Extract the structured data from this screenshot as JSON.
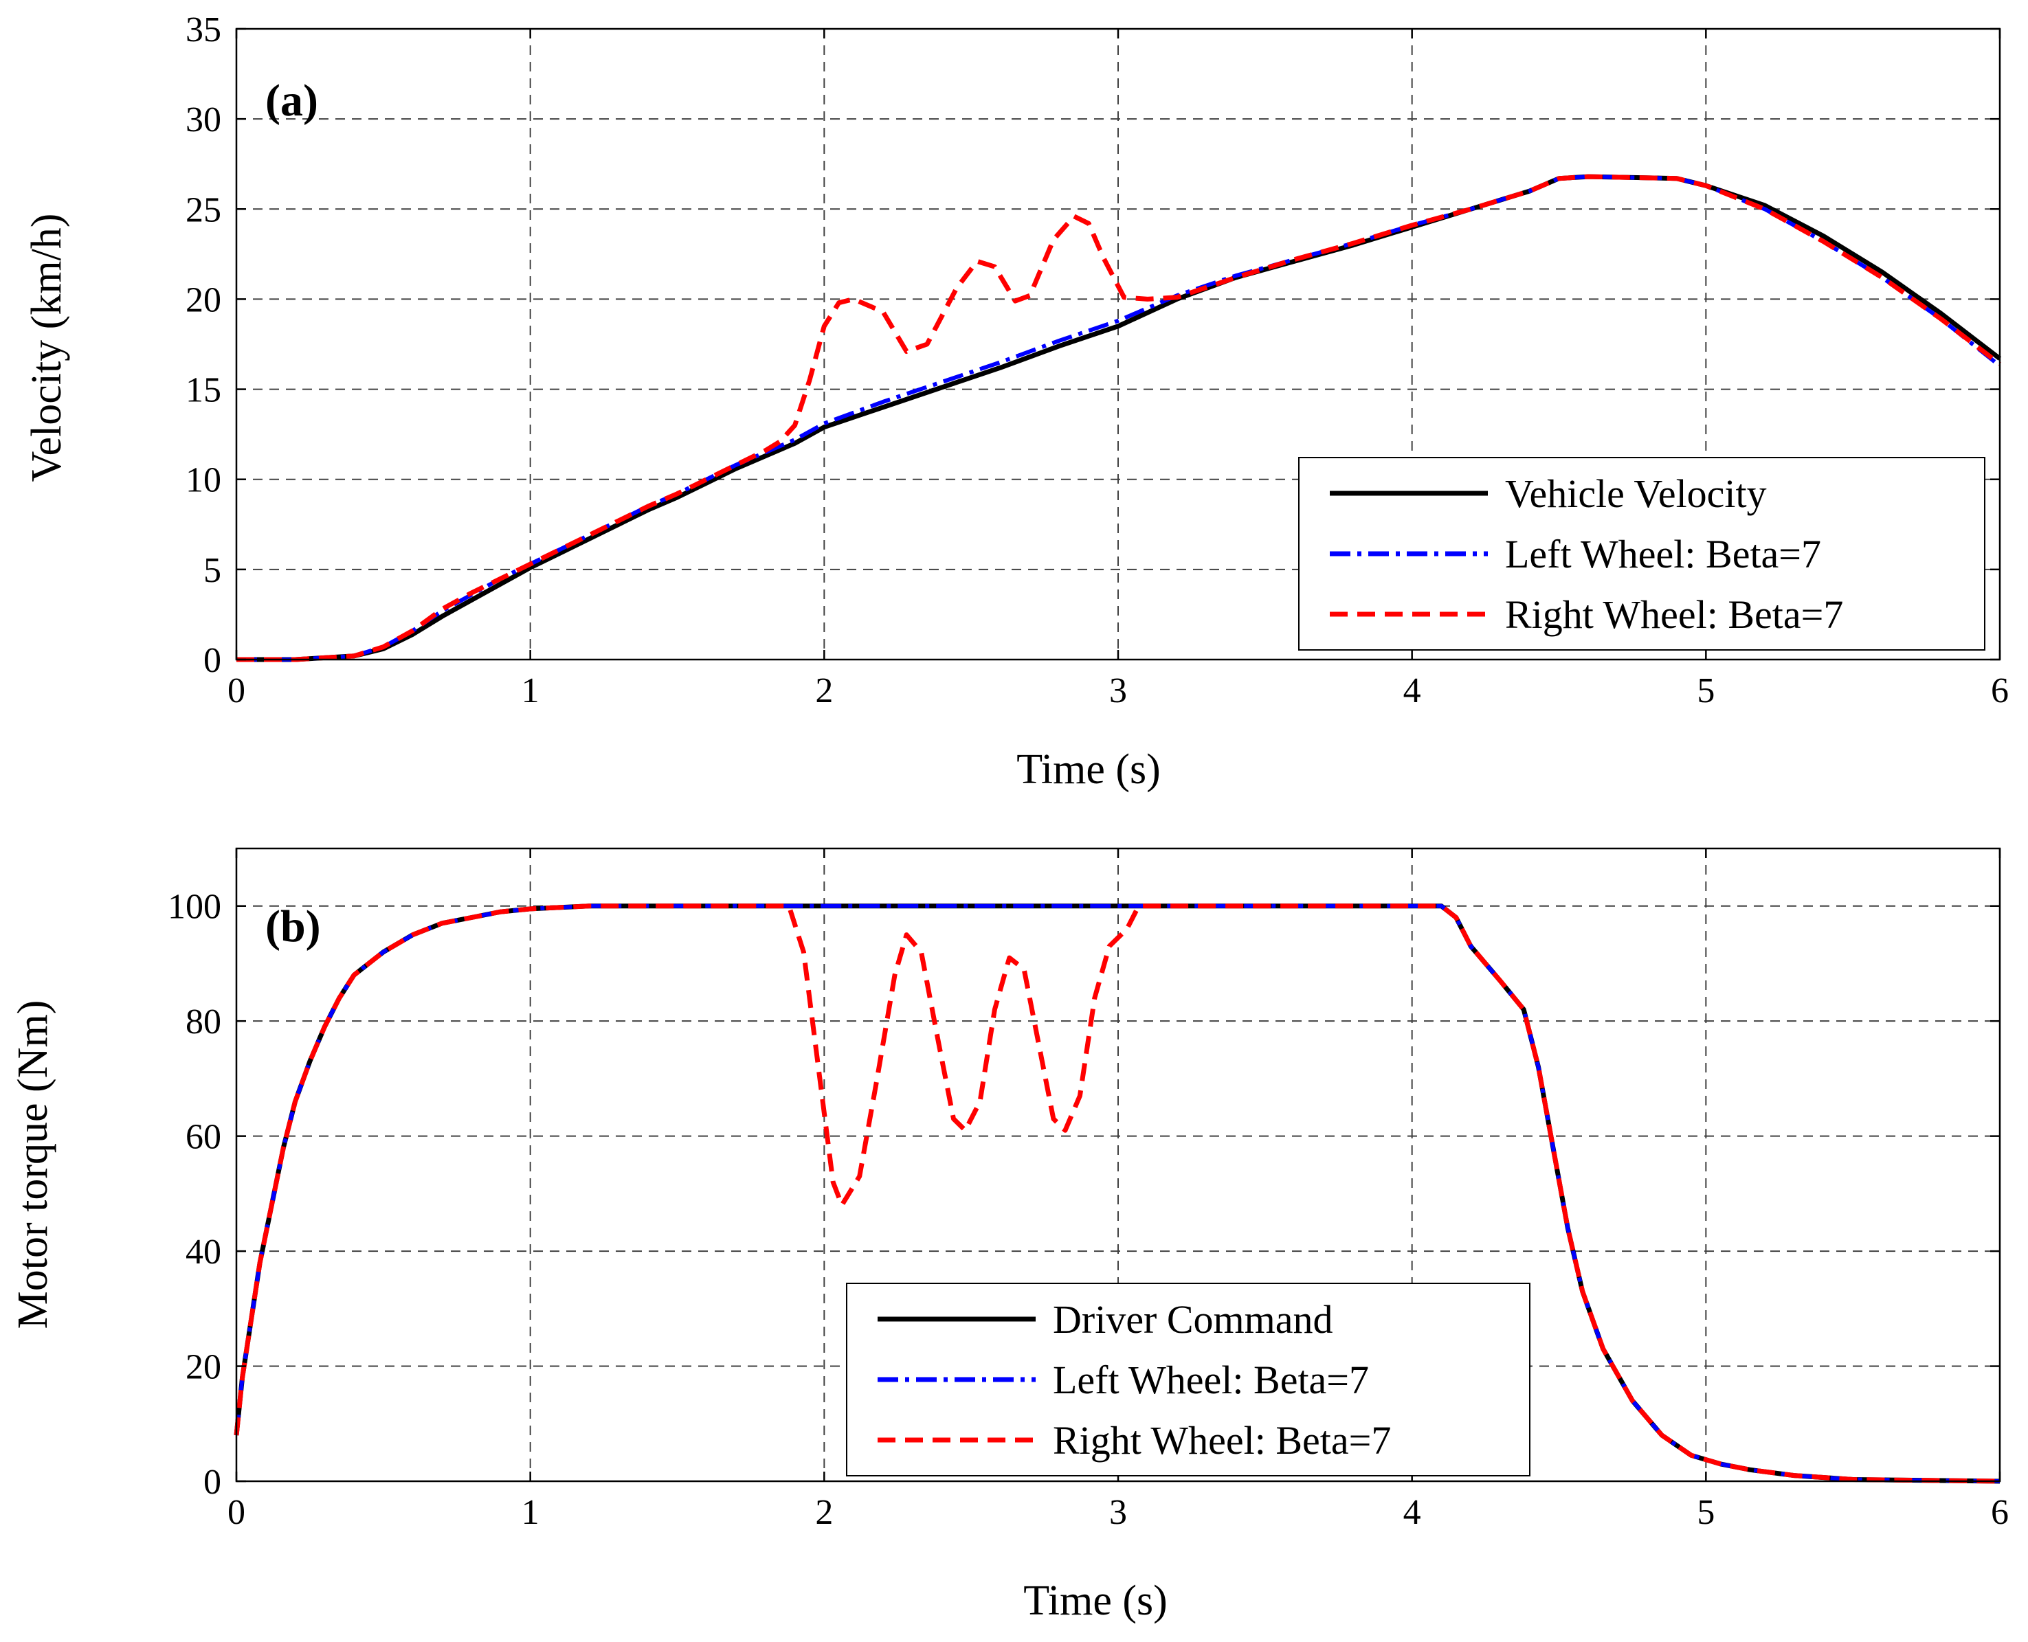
{
  "chart_data": [
    {
      "type": "line",
      "panel_label": "(a)",
      "xlabel": "Time (s)",
      "ylabel": "Velocity (km/h)",
      "xlim": [
        0,
        6
      ],
      "ylim": [
        0,
        35
      ],
      "xticks": [
        "0",
        "1",
        "2",
        "3",
        "4",
        "5",
        "6"
      ],
      "yticks": [
        "0",
        "5",
        "10",
        "15",
        "20",
        "25",
        "30",
        "35"
      ],
      "grid": true,
      "legend_position": "bottom-right",
      "series": [
        {
          "name": "Vehicle Velocity",
          "color": "#000000",
          "style": "solid",
          "points": [
            [
              0,
              0
            ],
            [
              0.2,
              0
            ],
            [
              0.3,
              0.1
            ],
            [
              0.4,
              0.2
            ],
            [
              0.5,
              0.6
            ],
            [
              0.6,
              1.4
            ],
            [
              0.7,
              2.4
            ],
            [
              0.8,
              3.3
            ],
            [
              0.9,
              4.2
            ],
            [
              1.0,
              5.1
            ],
            [
              1.1,
              5.9
            ],
            [
              1.2,
              6.7
            ],
            [
              1.3,
              7.5
            ],
            [
              1.4,
              8.3
            ],
            [
              1.5,
              9.0
            ],
            [
              1.6,
              9.8
            ],
            [
              1.7,
              10.6
            ],
            [
              1.8,
              11.3
            ],
            [
              1.9,
              12.0
            ],
            [
              2.0,
              12.9
            ],
            [
              2.2,
              14.0
            ],
            [
              2.4,
              15.1
            ],
            [
              2.6,
              16.2
            ],
            [
              2.8,
              17.4
            ],
            [
              3.0,
              18.5
            ],
            [
              3.2,
              20.0
            ],
            [
              3.4,
              21.2
            ],
            [
              3.6,
              22.1
            ],
            [
              3.8,
              23.0
            ],
            [
              4.0,
              24.0
            ],
            [
              4.2,
              25.0
            ],
            [
              4.4,
              26.0
            ],
            [
              4.5,
              26.7
            ],
            [
              4.6,
              26.8
            ],
            [
              4.9,
              26.7
            ],
            [
              5.0,
              26.3
            ],
            [
              5.2,
              25.2
            ],
            [
              5.4,
              23.5
            ],
            [
              5.6,
              21.5
            ],
            [
              5.8,
              19.2
            ],
            [
              6.0,
              16.7
            ]
          ]
        },
        {
          "name": "Left Wheel: Beta=7",
          "color": "#0000ff",
          "style": "dashdot",
          "points": [
            [
              0,
              0
            ],
            [
              0.2,
              0
            ],
            [
              0.3,
              0.1
            ],
            [
              0.4,
              0.2
            ],
            [
              0.5,
              0.7
            ],
            [
              0.6,
              1.6
            ],
            [
              0.7,
              2.7
            ],
            [
              0.8,
              3.6
            ],
            [
              0.9,
              4.5
            ],
            [
              1.0,
              5.3
            ],
            [
              1.1,
              6.1
            ],
            [
              1.2,
              6.9
            ],
            [
              1.3,
              7.7
            ],
            [
              1.4,
              8.5
            ],
            [
              1.5,
              9.2
            ],
            [
              1.6,
              10.0
            ],
            [
              1.7,
              10.8
            ],
            [
              1.8,
              11.5
            ],
            [
              1.9,
              12.2
            ],
            [
              2.0,
              13.1
            ],
            [
              2.2,
              14.3
            ],
            [
              2.4,
              15.4
            ],
            [
              2.6,
              16.5
            ],
            [
              2.8,
              17.7
            ],
            [
              3.0,
              18.8
            ],
            [
              3.2,
              20.2
            ],
            [
              3.4,
              21.3
            ],
            [
              3.6,
              22.2
            ],
            [
              3.8,
              23.1
            ],
            [
              4.0,
              24.1
            ],
            [
              4.2,
              25.0
            ],
            [
              4.4,
              26.0
            ],
            [
              4.5,
              26.7
            ],
            [
              4.6,
              26.8
            ],
            [
              4.9,
              26.7
            ],
            [
              5.0,
              26.3
            ],
            [
              5.2,
              25.0
            ],
            [
              5.4,
              23.2
            ],
            [
              5.6,
              21.2
            ],
            [
              5.8,
              18.9
            ],
            [
              6.0,
              16.3
            ]
          ]
        },
        {
          "name": "Right Wheel: Beta=7",
          "color": "#ff0000",
          "style": "dashed",
          "points": [
            [
              0,
              0
            ],
            [
              0.2,
              0
            ],
            [
              0.3,
              0.1
            ],
            [
              0.4,
              0.2
            ],
            [
              0.5,
              0.7
            ],
            [
              0.6,
              1.6
            ],
            [
              0.7,
              2.8
            ],
            [
              0.8,
              3.7
            ],
            [
              0.9,
              4.5
            ],
            [
              1.0,
              5.3
            ],
            [
              1.1,
              6.1
            ],
            [
              1.2,
              6.9
            ],
            [
              1.3,
              7.7
            ],
            [
              1.4,
              8.5
            ],
            [
              1.5,
              9.2
            ],
            [
              1.6,
              10.0
            ],
            [
              1.7,
              10.8
            ],
            [
              1.8,
              11.6
            ],
            [
              1.85,
              12.1
            ],
            [
              1.9,
              13.0
            ],
            [
              1.95,
              15.5
            ],
            [
              2.0,
              18.5
            ],
            [
              2.05,
              19.8
            ],
            [
              2.1,
              20.0
            ],
            [
              2.2,
              19.3
            ],
            [
              2.28,
              17.1
            ],
            [
              2.35,
              17.5
            ],
            [
              2.45,
              20.6
            ],
            [
              2.52,
              22.1
            ],
            [
              2.58,
              21.8
            ],
            [
              2.65,
              19.9
            ],
            [
              2.7,
              20.2
            ],
            [
              2.78,
              23.3
            ],
            [
              2.85,
              24.6
            ],
            [
              2.9,
              24.2
            ],
            [
              2.95,
              22.3
            ],
            [
              3.02,
              20.1
            ],
            [
              3.1,
              20.0
            ],
            [
              3.2,
              20.1
            ],
            [
              3.4,
              21.2
            ],
            [
              3.6,
              22.2
            ],
            [
              3.8,
              23.1
            ],
            [
              4.0,
              24.1
            ],
            [
              4.2,
              25.0
            ],
            [
              4.4,
              26.0
            ],
            [
              4.5,
              26.7
            ],
            [
              4.6,
              26.8
            ],
            [
              4.9,
              26.7
            ],
            [
              5.0,
              26.3
            ],
            [
              5.2,
              25.0
            ],
            [
              5.4,
              23.2
            ],
            [
              5.6,
              21.2
            ],
            [
              5.8,
              18.9
            ],
            [
              6.0,
              16.4
            ]
          ]
        }
      ]
    },
    {
      "type": "line",
      "panel_label": "(b)",
      "xlabel": "Time (s)",
      "ylabel": "Motor torque (Nm)",
      "xlim": [
        0,
        6
      ],
      "ylim": [
        0,
        110
      ],
      "xticks": [
        "0",
        "1",
        "2",
        "3",
        "4",
        "5",
        "6"
      ],
      "yticks": [
        "0",
        "20",
        "40",
        "60",
        "80",
        "100"
      ],
      "ytick_values": [
        0,
        20,
        40,
        60,
        80,
        100
      ],
      "grid": true,
      "legend_position": "bottom-center",
      "series": [
        {
          "name": "Driver Command",
          "color": "#000000",
          "style": "solid",
          "points": [
            [
              0,
              8
            ],
            [
              0.02,
              18
            ],
            [
              0.05,
              28
            ],
            [
              0.08,
              38
            ],
            [
              0.12,
              48
            ],
            [
              0.16,
              58
            ],
            [
              0.2,
              66
            ],
            [
              0.25,
              73
            ],
            [
              0.3,
              79
            ],
            [
              0.35,
              84
            ],
            [
              0.4,
              88
            ],
            [
              0.5,
              92
            ],
            [
              0.6,
              95
            ],
            [
              0.7,
              97
            ],
            [
              0.8,
              98
            ],
            [
              0.9,
              99
            ],
            [
              1.0,
              99.5
            ],
            [
              1.2,
              100
            ],
            [
              4.1,
              100
            ],
            [
              4.15,
              98
            ],
            [
              4.2,
              93
            ],
            [
              4.3,
              87
            ],
            [
              4.38,
              82
            ],
            [
              4.43,
              72
            ],
            [
              4.48,
              58
            ],
            [
              4.53,
              44
            ],
            [
              4.58,
              33
            ],
            [
              4.65,
              23
            ],
            [
              4.75,
              14
            ],
            [
              4.85,
              8
            ],
            [
              4.95,
              4.5
            ],
            [
              5.05,
              3
            ],
            [
              5.15,
              2
            ],
            [
              5.3,
              1
            ],
            [
              5.5,
              0.3
            ],
            [
              6.0,
              0
            ]
          ]
        },
        {
          "name": "Left Wheel: Beta=7",
          "color": "#0000ff",
          "style": "dashdot",
          "points": [
            [
              0,
              8
            ],
            [
              0.02,
              18
            ],
            [
              0.05,
              28
            ],
            [
              0.08,
              38
            ],
            [
              0.12,
              48
            ],
            [
              0.16,
              58
            ],
            [
              0.2,
              66
            ],
            [
              0.25,
              73
            ],
            [
              0.3,
              79
            ],
            [
              0.35,
              84
            ],
            [
              0.4,
              88
            ],
            [
              0.5,
              92
            ],
            [
              0.6,
              95
            ],
            [
              0.7,
              97
            ],
            [
              0.8,
              98
            ],
            [
              0.9,
              99
            ],
            [
              1.0,
              99.5
            ],
            [
              1.2,
              100
            ],
            [
              4.1,
              100
            ],
            [
              4.15,
              98
            ],
            [
              4.2,
              93
            ],
            [
              4.3,
              87
            ],
            [
              4.38,
              82
            ],
            [
              4.43,
              72
            ],
            [
              4.48,
              58
            ],
            [
              4.53,
              44
            ],
            [
              4.58,
              33
            ],
            [
              4.65,
              23
            ],
            [
              4.75,
              14
            ],
            [
              4.85,
              8
            ],
            [
              4.95,
              4.5
            ],
            [
              5.05,
              3
            ],
            [
              5.15,
              2
            ],
            [
              5.3,
              1
            ],
            [
              5.5,
              0.3
            ],
            [
              6.0,
              0
            ]
          ]
        },
        {
          "name": "Right Wheel: Beta=7",
          "color": "#ff0000",
          "style": "dashed",
          "points": [
            [
              0,
              8
            ],
            [
              0.02,
              18
            ],
            [
              0.05,
              28
            ],
            [
              0.08,
              38
            ],
            [
              0.12,
              48
            ],
            [
              0.16,
              58
            ],
            [
              0.2,
              66
            ],
            [
              0.25,
              73
            ],
            [
              0.3,
              79
            ],
            [
              0.35,
              84
            ],
            [
              0.4,
              88
            ],
            [
              0.5,
              92
            ],
            [
              0.6,
              95
            ],
            [
              0.7,
              97
            ],
            [
              0.8,
              98
            ],
            [
              0.9,
              99
            ],
            [
              1.0,
              99.5
            ],
            [
              1.2,
              100
            ],
            [
              1.88,
              100
            ],
            [
              1.93,
              92
            ],
            [
              1.98,
              72
            ],
            [
              2.03,
              52
            ],
            [
              2.06,
              48
            ],
            [
              2.12,
              53
            ],
            [
              2.18,
              70
            ],
            [
              2.24,
              88
            ],
            [
              2.28,
              95
            ],
            [
              2.33,
              92
            ],
            [
              2.39,
              76
            ],
            [
              2.44,
              63
            ],
            [
              2.48,
              61
            ],
            [
              2.53,
              66
            ],
            [
              2.58,
              82
            ],
            [
              2.63,
              91
            ],
            [
              2.68,
              89
            ],
            [
              2.73,
              76
            ],
            [
              2.78,
              63
            ],
            [
              2.82,
              61
            ],
            [
              2.87,
              67
            ],
            [
              2.92,
              84
            ],
            [
              2.97,
              93
            ],
            [
              3.03,
              96
            ],
            [
              3.07,
              100
            ],
            [
              4.1,
              100
            ],
            [
              4.15,
              98
            ],
            [
              4.2,
              93
            ],
            [
              4.3,
              87
            ],
            [
              4.38,
              82
            ],
            [
              4.43,
              72
            ],
            [
              4.48,
              58
            ],
            [
              4.53,
              44
            ],
            [
              4.58,
              33
            ],
            [
              4.65,
              23
            ],
            [
              4.75,
              14
            ],
            [
              4.85,
              8
            ],
            [
              4.95,
              4.5
            ],
            [
              5.05,
              3
            ],
            [
              5.15,
              2
            ],
            [
              5.3,
              1
            ],
            [
              5.5,
              0.3
            ],
            [
              6.0,
              0
            ]
          ]
        }
      ]
    }
  ]
}
